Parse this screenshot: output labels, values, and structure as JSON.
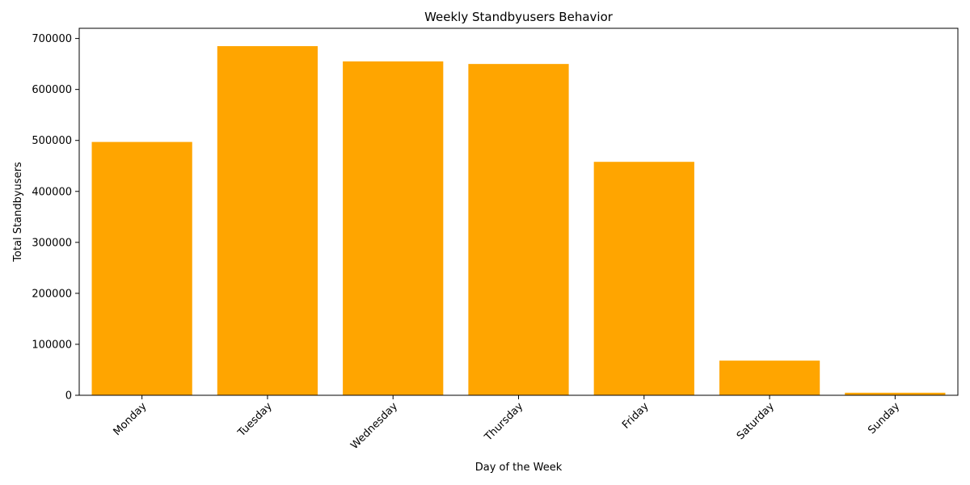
{
  "chart_data": {
    "type": "bar",
    "title": "Weekly Standbyusers Behavior",
    "xlabel": "Day of the Week",
    "ylabel": "Total Standbyusers",
    "categories": [
      "Monday",
      "Tuesday",
      "Wednesday",
      "Thursday",
      "Friday",
      "Saturday",
      "Sunday"
    ],
    "values": [
      497000,
      685000,
      655000,
      650000,
      458000,
      68000,
      5000
    ],
    "ylim": [
      0,
      720000
    ],
    "yticks": [
      0,
      100000,
      200000,
      300000,
      400000,
      500000,
      600000,
      700000
    ],
    "ytick_labels": [
      "0",
      "100000",
      "200000",
      "300000",
      "400000",
      "500000",
      "600000",
      "700000"
    ],
    "bar_color": "#ffa500",
    "grid": false,
    "legend": "none"
  }
}
